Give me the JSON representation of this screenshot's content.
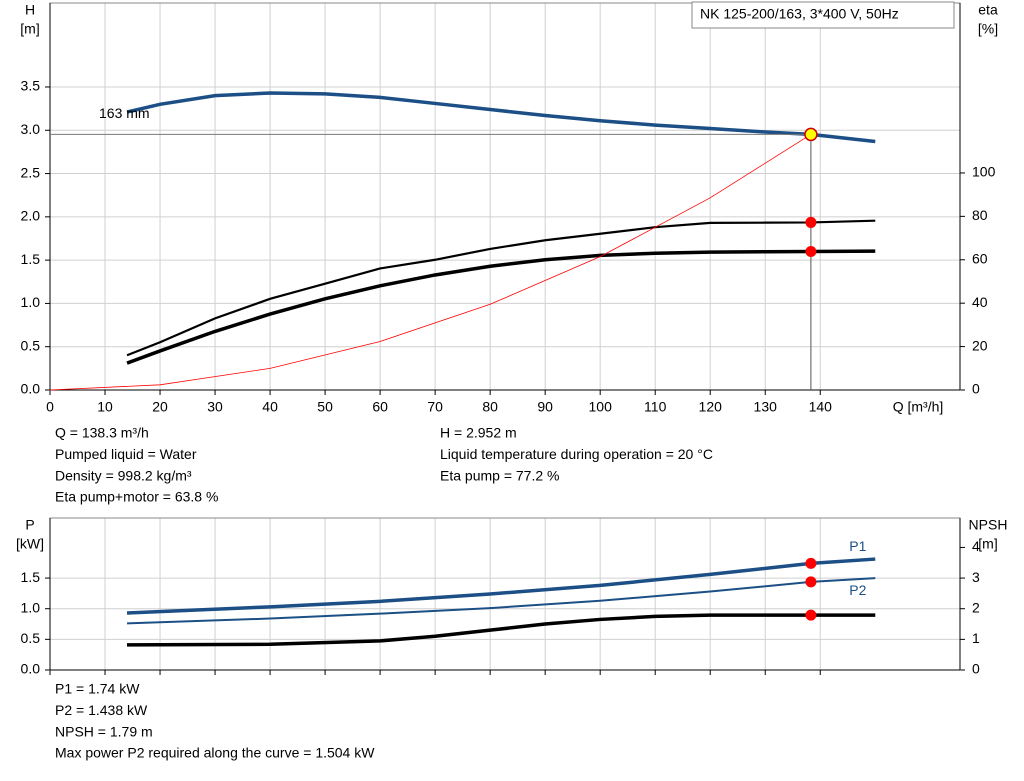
{
  "chart_data": [
    {
      "type": "line",
      "title": "NK 125-200/163, 3*400 V, 50Hz",
      "x_label": "Q [m³/h]",
      "y_label": "H",
      "y_unit": "[m]",
      "y2_label": "eta",
      "y2_unit": "[%]",
      "xlim": [
        0,
        165.4
      ],
      "xticks": [
        0,
        10,
        20,
        30,
        40,
        50,
        60,
        70,
        80,
        90,
        100,
        110,
        120,
        130,
        140
      ],
      "ylim": [
        0,
        4.47
      ],
      "yticks": [
        {
          "value": 0,
          "label": "0.0"
        },
        0.5,
        {
          "value": 1,
          "label": "1.0"
        },
        1.5,
        {
          "value": 2,
          "label": "2.0"
        },
        2.5,
        {
          "value": 3,
          "label": "3.0"
        },
        3.5
      ],
      "y2lim": [
        0,
        178.3
      ],
      "y2ticks": [
        0,
        20,
        40,
        60,
        80,
        100
      ],
      "grid": true,
      "operating_x": 138.3,
      "series": [
        {
          "name": "163 mm",
          "color": "#1c4f85",
          "width": 3.5,
          "marker_color": "#ffff00",
          "x": [
            14,
            20,
            30,
            40,
            50,
            60,
            70,
            80,
            90,
            100,
            110,
            120,
            130,
            138.3,
            150
          ],
          "values": [
            3.21,
            3.3,
            3.4,
            3.43,
            3.42,
            3.38,
            3.31,
            3.24,
            3.17,
            3.11,
            3.06,
            3.02,
            2.98,
            2.952,
            2.87
          ]
        },
        {
          "color": "#000000",
          "width": 2.2,
          "axis": "y2",
          "marker_color": "#ff0000",
          "x": [
            14,
            20,
            30,
            40,
            50,
            60,
            70,
            80,
            90,
            100,
            110,
            120,
            130,
            138.3,
            150
          ],
          "values": [
            16,
            22,
            33,
            42,
            49,
            56,
            60,
            65,
            69,
            72,
            75,
            77,
            77.1,
            77.2,
            78
          ]
        },
        {
          "color": "#000000",
          "width": 3.5,
          "axis": "y2",
          "marker_color": "#ff0000",
          "x": [
            14,
            20,
            30,
            40,
            50,
            60,
            70,
            80,
            90,
            100,
            110,
            120,
            130,
            138.3,
            150
          ],
          "values": [
            12.4,
            18,
            27,
            35,
            42,
            48,
            53,
            57,
            60,
            62,
            63,
            63.5,
            63.7,
            63.8,
            64
          ]
        },
        {
          "color": "#ff0000",
          "width": 0.8,
          "x": [
            0,
            20,
            40,
            60,
            80,
            100,
            120,
            138.3
          ],
          "values": [
            0,
            0.06,
            0.25,
            0.56,
            0.99,
            1.54,
            2.22,
            2.952
          ]
        }
      ],
      "notes": [
        [
          "Q = 138.3 m³/h",
          "Pumped liquid = Water",
          "Density = 998.2 kg/m³",
          "Eta pump+motor = 63.8 %"
        ],
        [
          "H = 2.952 m",
          "Liquid temperature during operation = 20 °C",
          "Eta pump = 77.2 %"
        ]
      ]
    },
    {
      "type": "line",
      "y_label": "P",
      "y_unit": "[kW]",
      "y2_label": "NPSH",
      "y2_unit": "[m]",
      "xlim": [
        0,
        165.4
      ],
      "xticks": [
        0,
        10,
        20,
        30,
        40,
        50,
        60,
        70,
        80,
        90,
        100,
        110,
        120,
        130,
        140
      ],
      "ylim": [
        0,
        2.48
      ],
      "yticks": [
        {
          "value": 0,
          "label": "0.0"
        },
        0.5,
        {
          "value": 1,
          "label": "1.0"
        },
        1.5
      ],
      "y2lim": [
        0,
        4.96
      ],
      "y2ticks": [
        0,
        1,
        2,
        3,
        4
      ],
      "grid": true,
      "operating_x": 138.3,
      "series": [
        {
          "name": "P1",
          "color": "#1c4f85",
          "width": 3.5,
          "marker_color": "#ff0000",
          "x": [
            14,
            40,
            60,
            80,
            100,
            120,
            138.3,
            150
          ],
          "values": [
            0.93,
            1.03,
            1.12,
            1.24,
            1.38,
            1.56,
            1.74,
            1.81
          ]
        },
        {
          "name": "P2",
          "color": "#1c4f85",
          "width": 2,
          "marker_color": "#ff0000",
          "x": [
            14,
            40,
            60,
            80,
            100,
            120,
            138.3,
            150
          ],
          "values": [
            0.76,
            0.84,
            0.92,
            1.01,
            1.13,
            1.28,
            1.438,
            1.5
          ]
        },
        {
          "color": "#000000",
          "width": 3.5,
          "axis": "y2",
          "marker_color": "#ff0000",
          "x": [
            14,
            40,
            60,
            70,
            80,
            90,
            100,
            110,
            120,
            138.3,
            150
          ],
          "values": [
            0.82,
            0.84,
            0.95,
            1.1,
            1.3,
            1.5,
            1.65,
            1.75,
            1.79,
            1.79,
            1.79
          ]
        }
      ],
      "notes": [
        [
          "P1 = 1.74 kW",
          "P2 = 1.438 kW",
          "NPSH = 1.79 m",
          "Max power P2 required along the curve = 1.504 kW"
        ]
      ]
    }
  ]
}
